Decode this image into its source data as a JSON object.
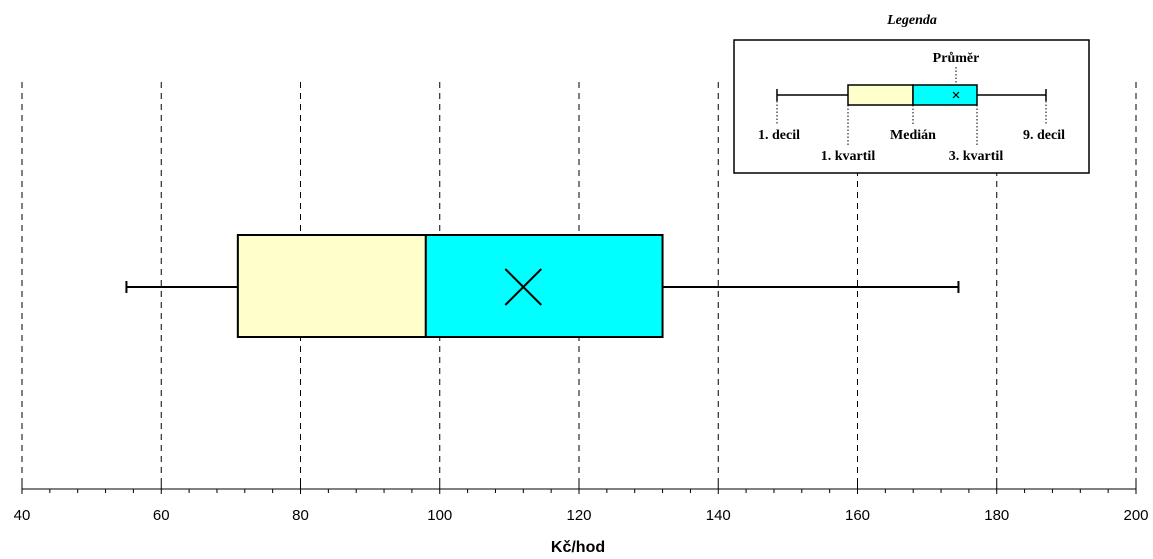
{
  "chart_data": {
    "type": "boxplot",
    "orientation": "horizontal",
    "xlabel": "Kč/hod",
    "xlim": [
      40,
      200
    ],
    "xticks": [
      40,
      60,
      80,
      100,
      120,
      140,
      160,
      180,
      200
    ],
    "grid": true,
    "box": {
      "decile1": 55,
      "quartile1": 71,
      "median": 98,
      "mean": 112,
      "quartile3": 132,
      "decile9": 174.5
    },
    "colors": {
      "lower_box": "#ffffcc",
      "upper_box": "#00ffff",
      "line": "#000000"
    },
    "legend": {
      "title": "Legenda",
      "placement": "top-right",
      "labels": {
        "mean": "Průměr",
        "decile1": "1. decil",
        "quartile1": "1. kvartil",
        "median": "Medián",
        "quartile3": "3. kvartil",
        "decile9": "9. decil"
      }
    }
  }
}
